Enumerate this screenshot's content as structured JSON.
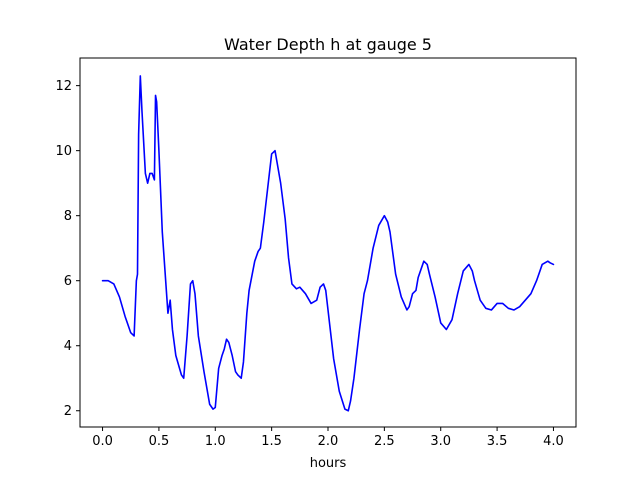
{
  "chart_data": {
    "type": "line",
    "title": "Water Depth h at gauge 5",
    "xlabel": "hours",
    "ylabel": "",
    "xlim": [
      -0.2,
      4.2
    ],
    "ylim": [
      1.5,
      12.85
    ],
    "xticks": [
      0.0,
      0.5,
      1.0,
      1.5,
      2.0,
      2.5,
      3.0,
      3.5,
      4.0
    ],
    "xtick_labels": [
      "0.0",
      "0.5",
      "1.0",
      "1.5",
      "2.0",
      "2.5",
      "3.0",
      "3.5",
      "4.0"
    ],
    "yticks": [
      2,
      4,
      6,
      8,
      10,
      12
    ],
    "ytick_labels": [
      "2",
      "4",
      "6",
      "8",
      "10",
      "12"
    ],
    "grid": false,
    "series": [
      {
        "color": "#0000ff",
        "x": [
          0.0,
          0.05,
          0.1,
          0.15,
          0.2,
          0.25,
          0.28,
          0.3,
          0.31,
          0.32,
          0.335,
          0.35,
          0.38,
          0.4,
          0.42,
          0.44,
          0.46,
          0.47,
          0.48,
          0.5,
          0.53,
          0.56,
          0.58,
          0.6,
          0.62,
          0.65,
          0.7,
          0.72,
          0.75,
          0.78,
          0.8,
          0.82,
          0.85,
          0.9,
          0.95,
          0.98,
          1.0,
          1.03,
          1.06,
          1.08,
          1.1,
          1.12,
          1.15,
          1.18,
          1.2,
          1.23,
          1.25,
          1.28,
          1.3,
          1.35,
          1.38,
          1.4,
          1.43,
          1.48,
          1.5,
          1.53,
          1.55,
          1.58,
          1.62,
          1.65,
          1.68,
          1.72,
          1.75,
          1.8,
          1.85,
          1.9,
          1.93,
          1.96,
          1.98,
          2.0,
          2.05,
          2.1,
          2.15,
          2.18,
          2.2,
          2.23,
          2.28,
          2.32,
          2.35,
          2.4,
          2.45,
          2.5,
          2.53,
          2.55,
          2.6,
          2.65,
          2.7,
          2.72,
          2.75,
          2.78,
          2.8,
          2.85,
          2.88,
          2.9,
          2.95,
          3.0,
          3.05,
          3.1,
          3.15,
          3.2,
          3.25,
          3.28,
          3.3,
          3.35,
          3.4,
          3.45,
          3.5,
          3.55,
          3.6,
          3.65,
          3.7,
          3.75,
          3.8,
          3.85,
          3.88,
          3.9,
          3.95,
          3.97,
          4.0
        ],
        "y": [
          6.0,
          6.0,
          5.9,
          5.5,
          4.9,
          4.4,
          4.3,
          6.0,
          6.2,
          10.5,
          12.3,
          11.2,
          9.3,
          9.0,
          9.3,
          9.3,
          9.1,
          11.7,
          11.5,
          10.0,
          7.5,
          6.0,
          5.0,
          5.4,
          4.5,
          3.7,
          3.1,
          3.0,
          4.3,
          5.9,
          6.0,
          5.6,
          4.3,
          3.2,
          2.2,
          2.05,
          2.1,
          3.3,
          3.7,
          3.9,
          4.2,
          4.1,
          3.7,
          3.2,
          3.1,
          3.0,
          3.5,
          5.0,
          5.7,
          6.6,
          6.9,
          7.0,
          7.8,
          9.3,
          9.9,
          10.0,
          9.6,
          9.0,
          7.9,
          6.7,
          5.9,
          5.75,
          5.8,
          5.6,
          5.3,
          5.4,
          5.8,
          5.9,
          5.7,
          5.1,
          3.6,
          2.6,
          2.05,
          2.0,
          2.3,
          3.0,
          4.5,
          5.6,
          6.0,
          7.0,
          7.7,
          8.0,
          7.8,
          7.5,
          6.2,
          5.5,
          5.1,
          5.2,
          5.6,
          5.7,
          6.1,
          6.6,
          6.5,
          6.2,
          5.5,
          4.7,
          4.5,
          4.8,
          5.6,
          6.3,
          6.5,
          6.3,
          6.0,
          5.4,
          5.15,
          5.1,
          5.3,
          5.3,
          5.15,
          5.1,
          5.2,
          5.4,
          5.6,
          6.0,
          6.3,
          6.5,
          6.6,
          6.55,
          6.5
        ]
      }
    ]
  }
}
